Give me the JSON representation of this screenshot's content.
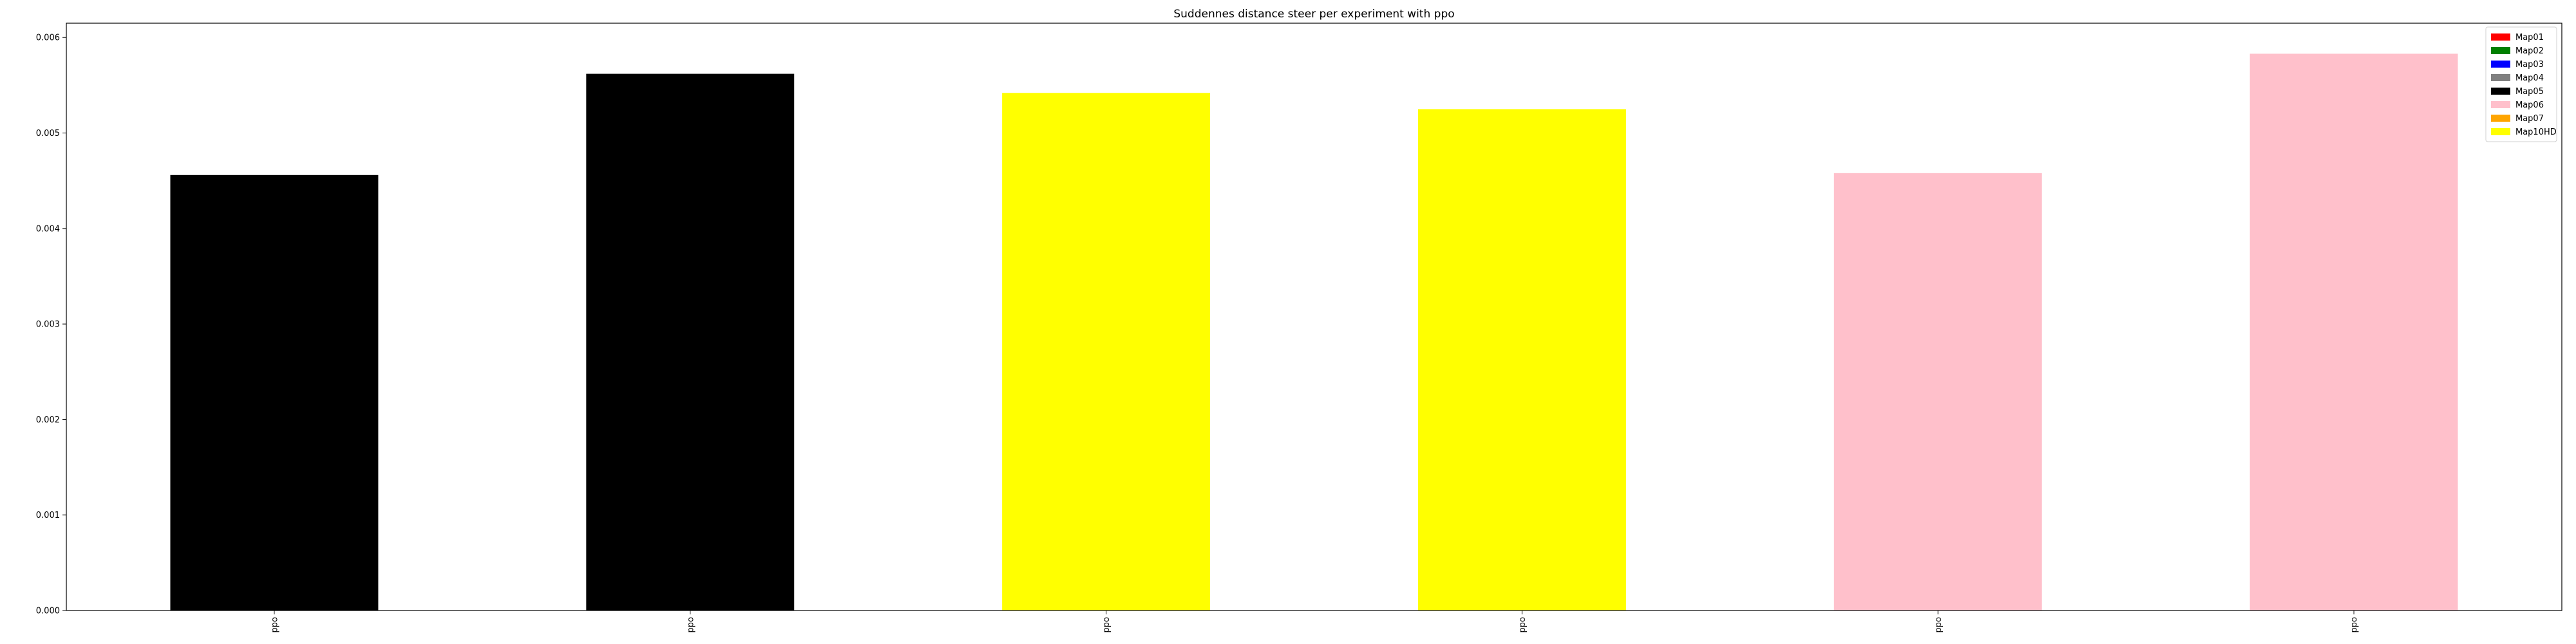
{
  "chart_data": {
    "type": "bar",
    "title": "Suddennes distance steer per experiment with ppo",
    "xlabel": "",
    "ylabel": "",
    "categories": [
      "ppo",
      "ppo",
      "ppo",
      "ppo",
      "ppo",
      "ppo"
    ],
    "values": [
      0.00456,
      0.00562,
      0.00542,
      0.00525,
      0.00458,
      0.00583
    ],
    "bar_colors": [
      "#000000",
      "#000000",
      "#ffff00",
      "#ffff00",
      "#ffc0cb",
      "#ffc0cb"
    ],
    "ylim": [
      0,
      0.00615
    ],
    "yticks": [
      0.0,
      0.001,
      0.002,
      0.003,
      0.004,
      0.005,
      0.006
    ],
    "ytick_labels": [
      "0.000",
      "0.001",
      "0.002",
      "0.003",
      "0.004",
      "0.005",
      "0.006"
    ],
    "grid": false,
    "legend": {
      "placement": "top-right",
      "entries": [
        {
          "label": "Map01",
          "color": "#ff0000"
        },
        {
          "label": "Map02",
          "color": "#008000"
        },
        {
          "label": "Map03",
          "color": "#0000ff"
        },
        {
          "label": "Map04",
          "color": "#808080"
        },
        {
          "label": "Map05",
          "color": "#000000"
        },
        {
          "label": "Map06",
          "color": "#ffc0cb"
        },
        {
          "label": "Map07",
          "color": "#ffa500"
        },
        {
          "label": "Map10HD",
          "color": "#ffff00"
        }
      ]
    }
  }
}
